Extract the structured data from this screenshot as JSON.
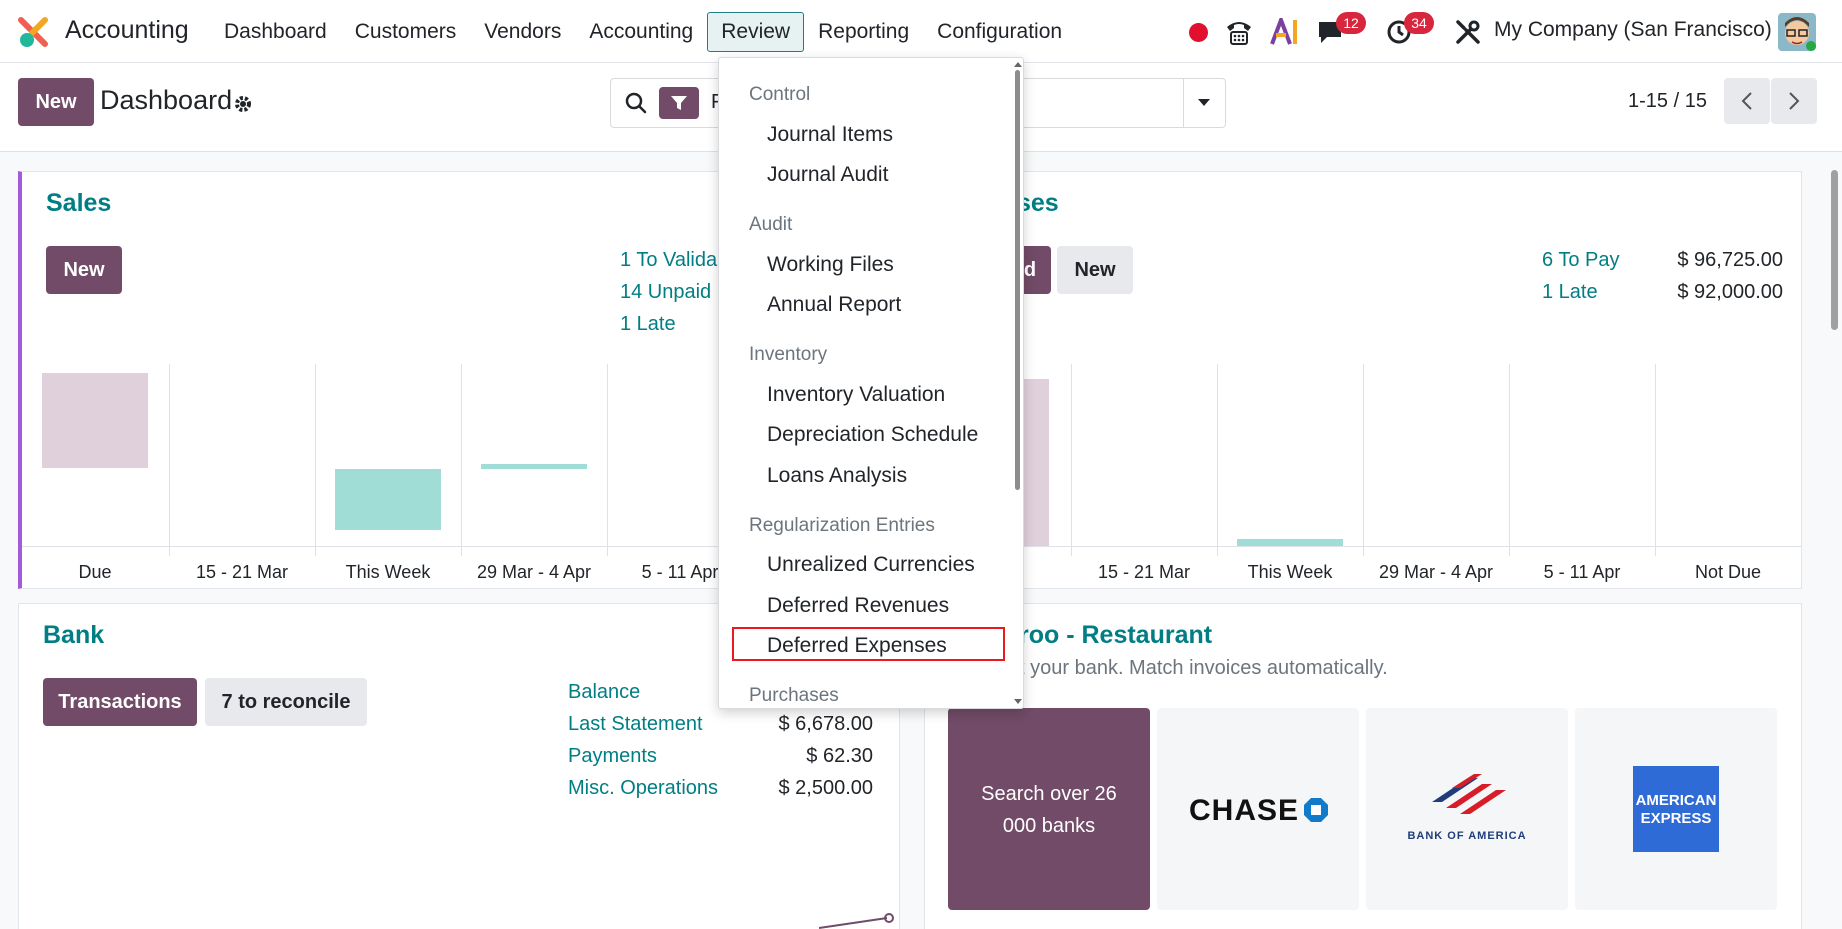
{
  "navbar": {
    "app_name": "Accounting",
    "menu": [
      "Dashboard",
      "Customers",
      "Vendors",
      "Accounting",
      "Review",
      "Reporting",
      "Configuration"
    ],
    "active_menu": "Review",
    "messages_count": "12",
    "activities_count": "34",
    "company": "My Company (San Francisco)"
  },
  "control": {
    "new_label": "New",
    "title": "Dashboard",
    "search_facet": "F",
    "pager": "1-15 / 15"
  },
  "sales": {
    "title": "Sales",
    "new_label": "New",
    "links": [
      "1 To Valida",
      "14 Unpaid",
      "1 Late"
    ],
    "ticks": [
      "Due",
      "15 - 21 Mar",
      "This Week",
      "29 Mar - 4 Apr",
      "5 - 11 Apr"
    ]
  },
  "purchases": {
    "title": "ses",
    "upload_label": "d",
    "new_label": "New",
    "links": [
      "6 To Pay",
      "1 Late"
    ],
    "amounts": [
      "$ 96,725.00",
      "$ 92,000.00"
    ],
    "ticks": [
      "15 - 21 Mar",
      "This Week",
      "29 Mar - 4 Apr",
      "5 - 11 Apr",
      "Not Due"
    ]
  },
  "bank": {
    "title": "Bank",
    "transactions_label": "Transactions",
    "reconcile_label": "7 to reconcile",
    "rows": [
      {
        "label": "Balance",
        "value": ""
      },
      {
        "label": "Last Statement",
        "value": "$ 6,678.00"
      },
      {
        "label": "Payments",
        "value": "$ 62.30"
      },
      {
        "label": "Misc. Operations",
        "value": "$ 2,500.00"
      }
    ]
  },
  "restaurant": {
    "title": "roo - Restaurant",
    "subtitle": "t your bank. Match invoices automatically.",
    "search_banks": "Search over 26 000 banks",
    "chase": "CHASE",
    "boa": "BANK OF AMERICA",
    "amex_1": "AMERICAN",
    "amex_2": "EXPRESS"
  },
  "dropdown": {
    "groups": [
      {
        "header": "Control",
        "items": [
          "Journal Items",
          "Journal Audit"
        ]
      },
      {
        "header": "Audit",
        "items": [
          "Working Files",
          "Annual Report"
        ]
      },
      {
        "header": "Inventory",
        "items": [
          "Inventory Valuation",
          "Depreciation Schedule",
          "Loans Analysis"
        ]
      },
      {
        "header": "Regularization Entries",
        "items": [
          "Unrealized Currencies",
          "Deferred Revenues",
          "Deferred Expenses"
        ]
      },
      {
        "header": "Purchases",
        "items": []
      }
    ],
    "highlighted_item": "Deferred Expenses"
  },
  "colors": {
    "primary": "#714b67",
    "link": "#017e84",
    "bar_past": "#e0d0dc",
    "bar_future": "#a0ddd7",
    "accent_left": "#a55ad9"
  }
}
